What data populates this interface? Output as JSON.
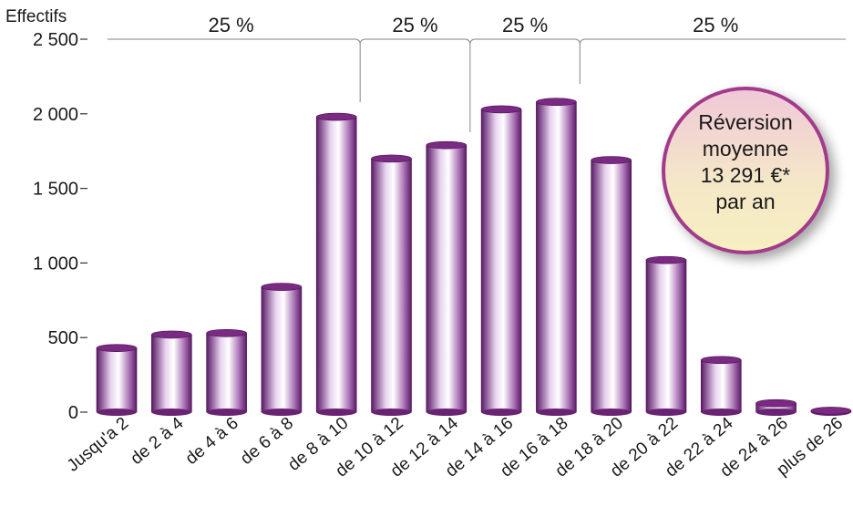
{
  "chart_data": {
    "type": "bar",
    "ylabel": "Effectifs",
    "ylim": [
      0,
      2500
    ],
    "yticks": [
      0,
      500,
      1000,
      1500,
      2000,
      2500
    ],
    "ytick_labels": [
      "0",
      "500",
      "1 000",
      "1 500",
      "2 000",
      "2 500"
    ],
    "categories": [
      "Jusqu'a 2",
      "de 2 à 4",
      "de 4 à 6",
      "de 6 à 8",
      "de 8 à 10",
      "de 10 à 12",
      "de 12 à 14",
      "de 14 à 16",
      "de 16 à 18",
      "de 18 à 20",
      "de 20 à 22",
      "de 22 à 24",
      "de 24 à 26",
      "plus de 26"
    ],
    "values": [
      430,
      520,
      530,
      840,
      1980,
      1700,
      1790,
      2030,
      2080,
      1690,
      1020,
      350,
      60,
      10
    ],
    "bar_color": "#7a2a82",
    "grid": false,
    "annotations": {
      "quartiles": [
        {
          "label": "25 %",
          "from": 0,
          "to": 4
        },
        {
          "label": "25 %",
          "from": 4,
          "to": 6
        },
        {
          "label": "25 %",
          "from": 6,
          "to": 8
        },
        {
          "label": "25 %",
          "from": 8,
          "to": 13
        }
      ],
      "bubble": {
        "lines": [
          "Réversion",
          "moyenne",
          "13 291 €*",
          "par an"
        ]
      }
    }
  }
}
